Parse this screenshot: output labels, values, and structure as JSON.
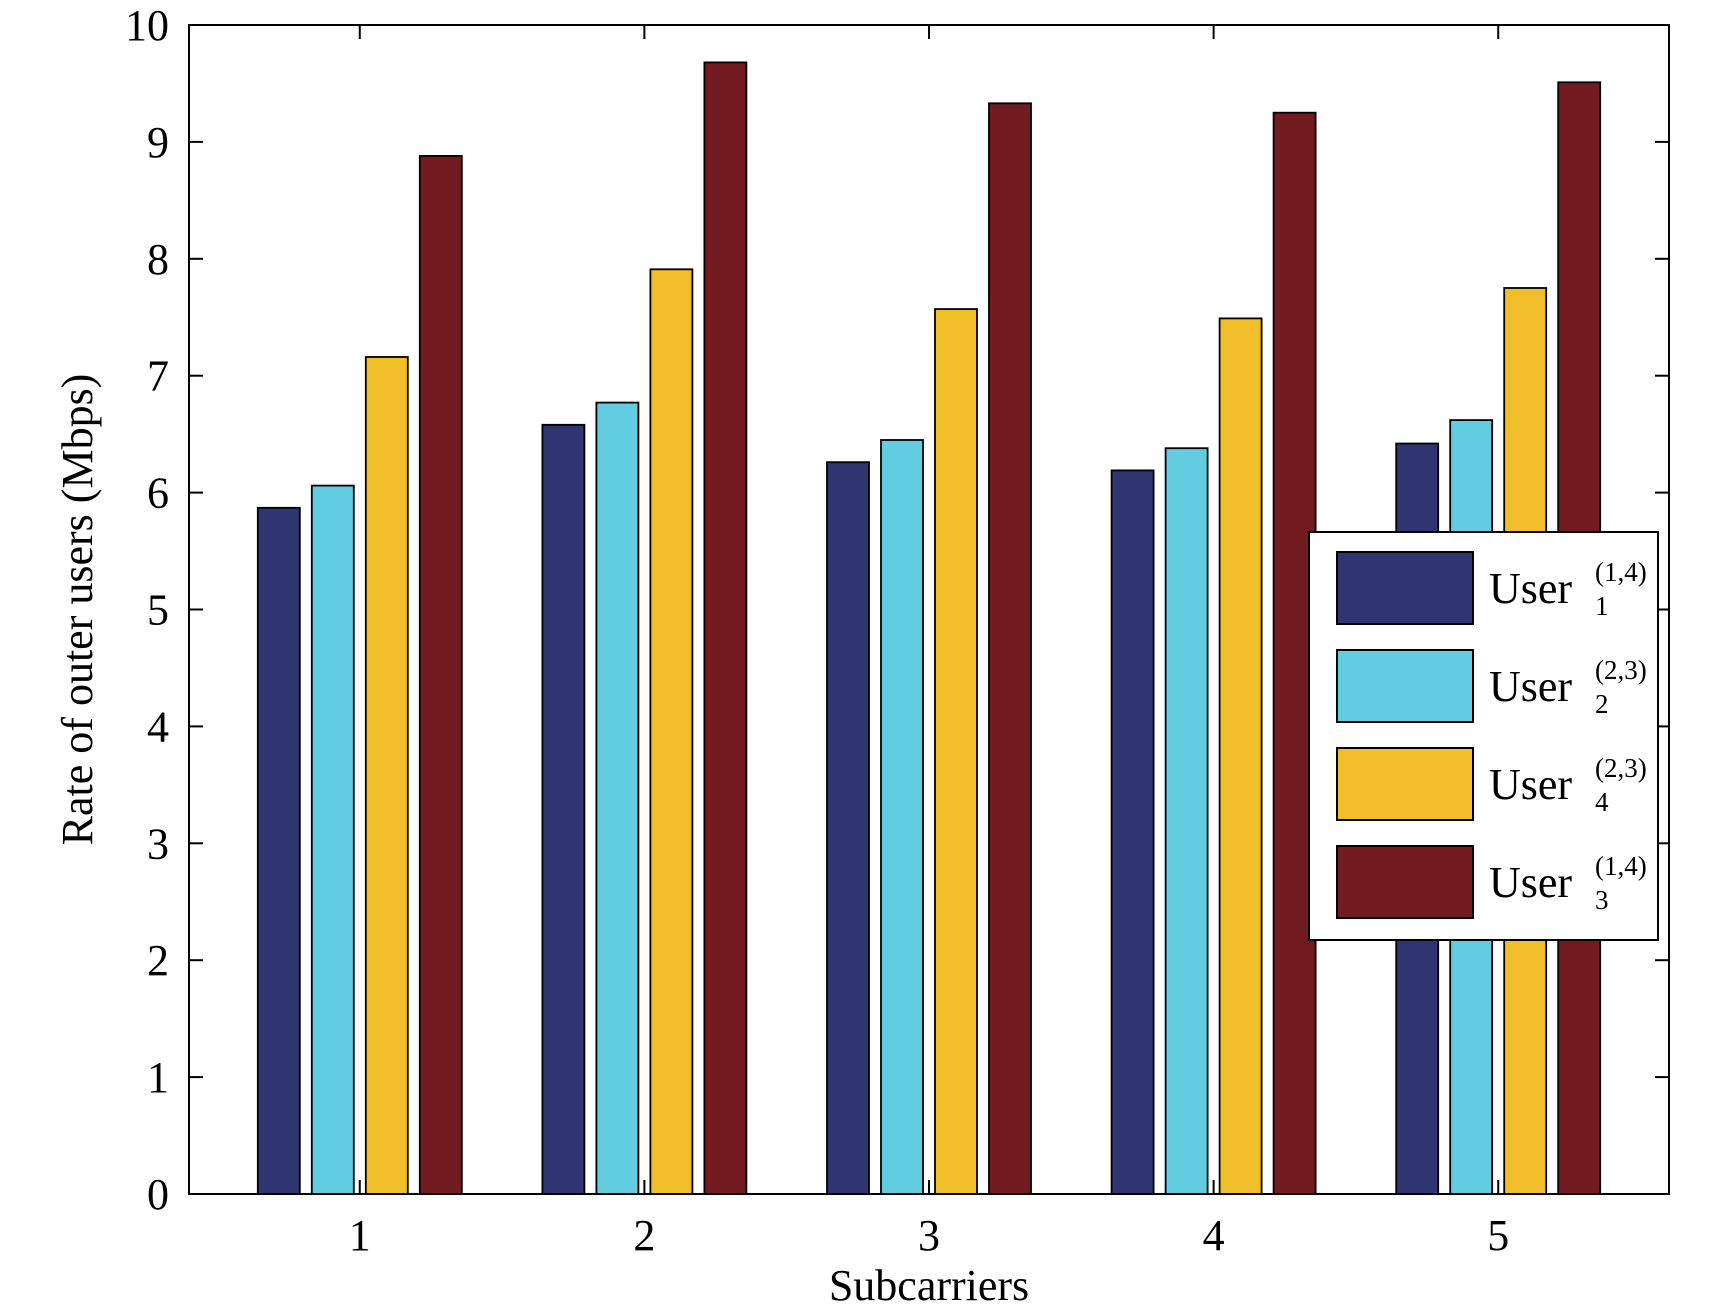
{
  "chart_data": {
    "type": "bar",
    "title": "",
    "xlabel": "Subcarriers",
    "ylabel": "Rate of outer users (Mbps)",
    "categories": [
      "1",
      "2",
      "3",
      "4",
      "5"
    ],
    "ylim": [
      0,
      10
    ],
    "yticks": [
      "0",
      "1",
      "2",
      "3",
      "4",
      "5",
      "6",
      "7",
      "8",
      "9",
      "10"
    ],
    "grid": false,
    "legend_position": "right",
    "series": [
      {
        "name": "User",
        "sub": "1",
        "sup": "(1,4)",
        "color": "#2f3570",
        "values": [
          5.87,
          6.58,
          6.26,
          6.19,
          6.42
        ]
      },
      {
        "name": "User",
        "sub": "2",
        "sup": "(2,3)",
        "color": "#62cde1",
        "values": [
          6.06,
          6.77,
          6.45,
          6.38,
          6.62
        ]
      },
      {
        "name": "User",
        "sub": "4",
        "sup": "(2,3)",
        "color": "#f0be28",
        "values": [
          7.16,
          7.91,
          7.57,
          7.49,
          7.75
        ]
      },
      {
        "name": "User",
        "sub": "3",
        "sup": "(1,4)",
        "color": "#721c22",
        "values": [
          8.88,
          9.68,
          9.33,
          9.25,
          9.51
        ]
      }
    ]
  }
}
